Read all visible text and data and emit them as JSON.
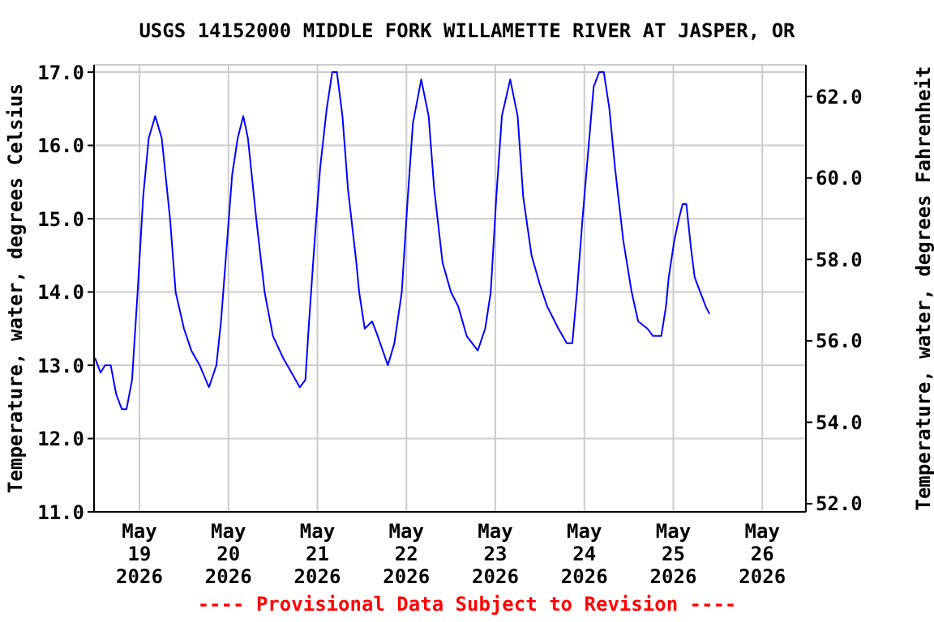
{
  "chart_data": {
    "type": "line",
    "title": "USGS 14152000 MIDDLE FORK WILLAMETTE RIVER AT JASPER, OR",
    "ylabel": "Temperature, water, degrees Celsius",
    "y2label": "Temperature, water, degrees Fahrenheit",
    "annotations": [
      "---- Provisional Data Subject to Revision ----"
    ],
    "x": [
      "2026-05-18T12:00",
      "2026-05-18T13:30",
      "2026-05-18T14:45",
      "2026-05-18T16:15",
      "2026-05-18T17:45",
      "2026-05-18T19:15",
      "2026-05-18T20:30",
      "2026-05-18T22:00",
      "2026-05-18T23:30",
      "2026-05-19T01:00",
      "2026-05-19T02:30",
      "2026-05-19T04:15",
      "2026-05-19T06:00",
      "2026-05-19T08:15",
      "2026-05-19T09:45",
      "2026-05-19T12:00",
      "2026-05-19T14:00",
      "2026-05-19T16:15",
      "2026-05-19T18:45",
      "2026-05-19T20:45",
      "2026-05-19T22:00",
      "2026-05-19T23:30",
      "2026-05-20T01:00",
      "2026-05-20T02:30",
      "2026-05-20T04:00",
      "2026-05-20T05:15",
      "2026-05-20T07:30",
      "2026-05-20T09:45",
      "2026-05-20T12:00",
      "2026-05-20T14:45",
      "2026-05-20T17:00",
      "2026-05-20T19:15",
      "2026-05-20T20:45",
      "2026-05-20T21:45",
      "2026-05-20T23:15",
      "2026-05-21T00:45",
      "2026-05-21T02:30",
      "2026-05-21T04:00",
      "2026-05-21T05:15",
      "2026-05-21T06:45",
      "2026-05-21T08:15",
      "2026-05-21T10:30",
      "2026-05-21T11:15",
      "2026-05-21T12:45",
      "2026-05-21T14:45",
      "2026-05-21T16:15",
      "2026-05-21T19:00",
      "2026-05-21T20:45",
      "2026-05-21T22:45",
      "2026-05-22T00:15",
      "2026-05-22T01:45",
      "2026-05-22T04:00",
      "2026-05-22T06:00",
      "2026-05-22T07:30",
      "2026-05-22T09:45",
      "2026-05-22T12:00",
      "2026-05-22T14:00",
      "2026-05-22T16:15",
      "2026-05-22T19:15",
      "2026-05-22T21:15",
      "2026-05-22T22:45",
      "2026-05-23T00:15",
      "2026-05-23T01:45",
      "2026-05-23T04:00",
      "2026-05-23T06:00",
      "2026-05-23T07:30",
      "2026-05-23T09:45",
      "2026-05-23T12:00",
      "2026-05-23T14:00",
      "2026-05-23T17:00",
      "2026-05-23T19:15",
      "2026-05-23T20:45",
      "2026-05-23T22:00",
      "2026-05-23T23:30",
      "2026-05-24T01:00",
      "2026-05-24T02:30",
      "2026-05-24T04:00",
      "2026-05-24T05:15",
      "2026-05-24T06:45",
      "2026-05-24T08:15",
      "2026-05-24T10:30",
      "2026-05-24T12:45",
      "2026-05-24T14:30",
      "2026-05-24T17:00",
      "2026-05-24T18:30",
      "2026-05-24T20:45",
      "2026-05-24T22:00",
      "2026-05-24T22:45",
      "2026-05-25T00:15",
      "2026-05-25T01:30",
      "2026-05-25T02:30",
      "2026-05-25T03:30",
      "2026-05-25T04:45",
      "2026-05-25T05:45",
      "2026-05-25T07:15",
      "2026-05-25T08:45",
      "2026-05-25T09:45"
    ],
    "series": [
      {
        "color": "#0000ff",
        "values": [
          13.1,
          12.9,
          13.0,
          13.0,
          12.6,
          12.4,
          12.4,
          12.8,
          14.0,
          15.3,
          16.1,
          16.4,
          16.1,
          15.0,
          14.0,
          13.5,
          13.2,
          13.0,
          12.7,
          13.0,
          13.6,
          14.6,
          15.6,
          16.1,
          16.4,
          16.1,
          15.0,
          14.0,
          13.4,
          13.1,
          12.9,
          12.7,
          12.8,
          13.6,
          14.7,
          15.7,
          16.5,
          17.0,
          17.0,
          16.4,
          15.4,
          14.4,
          14.0,
          13.5,
          13.6,
          13.4,
          13.0,
          13.3,
          14.0,
          15.2,
          16.3,
          16.9,
          16.4,
          15.4,
          14.4,
          14.0,
          13.8,
          13.4,
          13.2,
          13.5,
          14.0,
          15.3,
          16.4,
          16.9,
          16.4,
          15.3,
          14.5,
          14.1,
          13.8,
          13.5,
          13.3,
          13.3,
          14.0,
          15.0,
          15.9,
          16.8,
          17.0,
          17.0,
          16.5,
          15.7,
          14.7,
          14.0,
          13.6,
          13.5,
          13.4,
          13.4,
          13.8,
          14.2,
          14.7,
          15.0,
          15.2,
          15.2,
          14.6,
          14.2,
          14.0,
          13.8,
          13.7
        ]
      }
    ],
    "xlim": [
      "2026-05-18T11:45",
      "2026-05-26T11:45"
    ],
    "xticks": [
      {
        "value": "2026-05-19",
        "label": "May 19 2026"
      },
      {
        "value": "2026-05-20",
        "label": "May 20 2026"
      },
      {
        "value": "2026-05-21",
        "label": "May 21 2026"
      },
      {
        "value": "2026-05-22",
        "label": "May 22 2026"
      },
      {
        "value": "2026-05-23",
        "label": "May 23 2026"
      },
      {
        "value": "2026-05-24",
        "label": "May 24 2026"
      },
      {
        "value": "2026-05-25",
        "label": "May 25 2026"
      },
      {
        "value": "2026-05-26",
        "label": "May 26 2026"
      }
    ],
    "ylim": [
      11,
      17.1
    ],
    "yticks": [
      {
        "value": 11,
        "label": "11.0"
      },
      {
        "value": 12,
        "label": "12.0"
      },
      {
        "value": 13,
        "label": "13.0"
      },
      {
        "value": 14,
        "label": "14.0"
      },
      {
        "value": 15,
        "label": "15.0"
      },
      {
        "value": 16,
        "label": "16.0"
      },
      {
        "value": 17,
        "label": "17.0"
      }
    ],
    "y2lim": [
      51.8,
      62.78
    ],
    "y2ticks": [
      {
        "value": 52,
        "label": "52.0"
      },
      {
        "value": 54,
        "label": "54.0"
      },
      {
        "value": 56,
        "label": "56.0"
      },
      {
        "value": 58,
        "label": "58.0"
      },
      {
        "value": 60,
        "label": "60.0"
      },
      {
        "value": 62,
        "label": "62.0"
      }
    ],
    "grid": true,
    "legend": false,
    "marker": "none",
    "line_style": "solid"
  }
}
